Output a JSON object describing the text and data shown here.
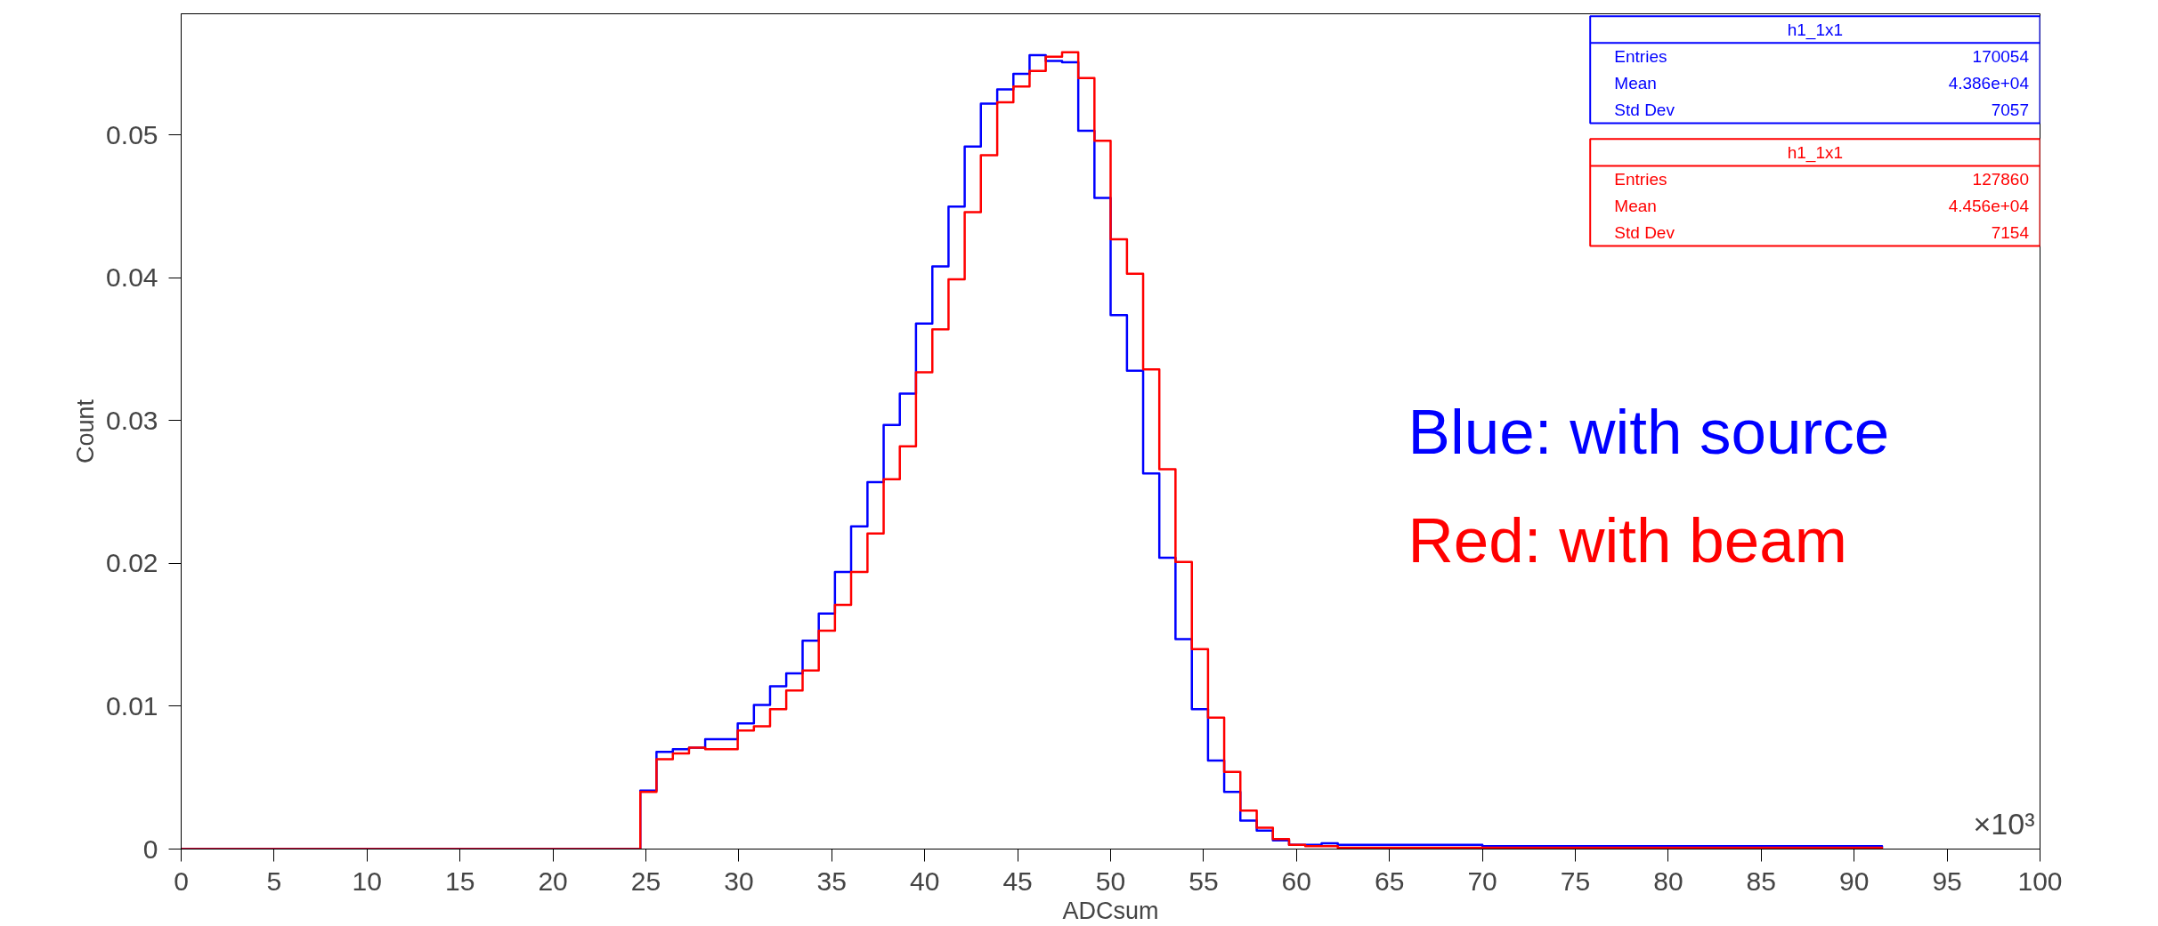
{
  "chart_data": {
    "type": "step",
    "xlabel": "ADCsum",
    "ylabel": "Count",
    "x": [
      0,
      24.7,
      25.57,
      26.45,
      27.32,
      28.19,
      29.06,
      29.94,
      30.81,
      31.68,
      32.55,
      33.43,
      34.3,
      35.17,
      36.04,
      36.92,
      37.79,
      38.66,
      39.53,
      40.41,
      41.28,
      42.15,
      43.02,
      43.9,
      44.77,
      45.64,
      46.51,
      47.39,
      48.26,
      49.13,
      50.0,
      50.88,
      51.75,
      52.62,
      53.49,
      54.37,
      55.24,
      56.11,
      56.98,
      57.86,
      58.73,
      59.6,
      60.47,
      61.35,
      62.22,
      70.0,
      91.5
    ],
    "series": [
      {
        "name": "Blue: with source",
        "color": "#0000ff",
        "values": [
          0,
          0.0041,
          0.0068,
          0.007,
          0.0071,
          0.0077,
          0.0077,
          0.0088,
          0.0101,
          0.0114,
          0.0123,
          0.0146,
          0.0165,
          0.0194,
          0.0226,
          0.0257,
          0.0297,
          0.0319,
          0.0368,
          0.0408,
          0.045,
          0.0492,
          0.0522,
          0.0532,
          0.0543,
          0.0556,
          0.0552,
          0.0551,
          0.0503,
          0.0456,
          0.0374,
          0.0335,
          0.0263,
          0.0204,
          0.0147,
          0.0098,
          0.0062,
          0.004,
          0.002,
          0.0013,
          0.0006,
          0.0003,
          0.0003,
          0.0004,
          0.0003,
          0.0002,
          0.0001
        ]
      },
      {
        "name": "Red: with beam",
        "color": "#ff0000",
        "values": [
          0,
          0.004,
          0.0063,
          0.0067,
          0.0071,
          0.007,
          0.007,
          0.0083,
          0.0086,
          0.0098,
          0.0111,
          0.0125,
          0.0153,
          0.0171,
          0.0194,
          0.0221,
          0.0259,
          0.0282,
          0.0334,
          0.0364,
          0.0399,
          0.0446,
          0.0486,
          0.0523,
          0.0534,
          0.0545,
          0.0555,
          0.0558,
          0.054,
          0.0496,
          0.0427,
          0.0403,
          0.0336,
          0.0266,
          0.0201,
          0.014,
          0.0092,
          0.0054,
          0.0027,
          0.0015,
          0.0007,
          0.0003,
          0.0002,
          0.0002,
          0.0001,
          0.0001,
          0
        ]
      }
    ],
    "xlim": [
      0,
      100
    ],
    "ylim": [
      0,
      0.0585
    ],
    "xticks": [
      0,
      5,
      10,
      15,
      20,
      25,
      30,
      35,
      40,
      45,
      50,
      55,
      60,
      65,
      70,
      75,
      80,
      85,
      90,
      95,
      100
    ],
    "yticks": [
      0,
      0.01,
      0.02,
      0.03,
      0.04,
      0.05
    ],
    "legend": "right",
    "grid": false,
    "annotations": [
      "h1_1x1",
      "Entries",
      "170054",
      "Mean",
      "4.386e+04",
      "Std Dev",
      "7057",
      "h1_1x1",
      "Entries",
      "127860",
      "Mean",
      "4.456e+04",
      "Std Dev",
      "7154",
      "×10³"
    ]
  }
}
